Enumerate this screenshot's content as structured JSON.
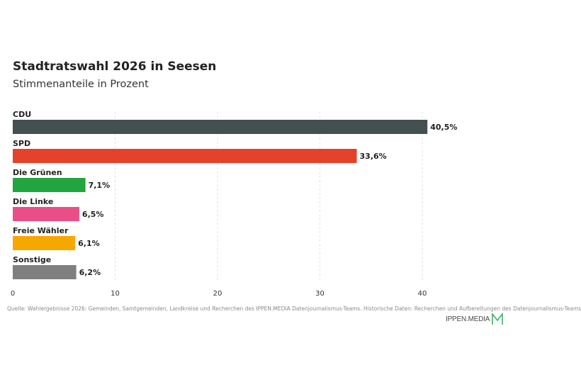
{
  "header": {
    "title": "Stadtratswahl 2026 in Seesen",
    "subtitle": "Stimmenanteile in Prozent"
  },
  "footer": {
    "source": "Quelle: Wahlergebnisse 2026: Gemeinden, Samtgemeinden, Landkreise und Recherchen des IPPEN.MEDIA Datenjournalismus-Teams. Historische Daten: Recherchen und Aufbereitungen des Datenjournalismus-Teams",
    "logo_text": "IPPEN.MEDIA"
  },
  "chart_data": {
    "type": "bar",
    "orientation": "horizontal",
    "title": "Stadtratswahl 2026 in Seesen",
    "subtitle": "Stimmenanteile in Prozent",
    "categories": [
      "CDU",
      "SPD",
      "Die Grünen",
      "Die Linke",
      "Freie Wähler",
      "Sonstige"
    ],
    "values": [
      40.5,
      33.6,
      7.1,
      6.5,
      6.1,
      6.2
    ],
    "value_labels": [
      "40,5%",
      "33,6%",
      "7,1%",
      "6,5%",
      "6,1%",
      "6,2%"
    ],
    "colors": [
      "#434f50",
      "#e5422b",
      "#22a43f",
      "#e94f86",
      "#f7a800",
      "#7f7f7f"
    ],
    "x_ticks": [
      0,
      10,
      20,
      30,
      40
    ],
    "xlim": [
      0,
      42
    ],
    "grid": true
  }
}
